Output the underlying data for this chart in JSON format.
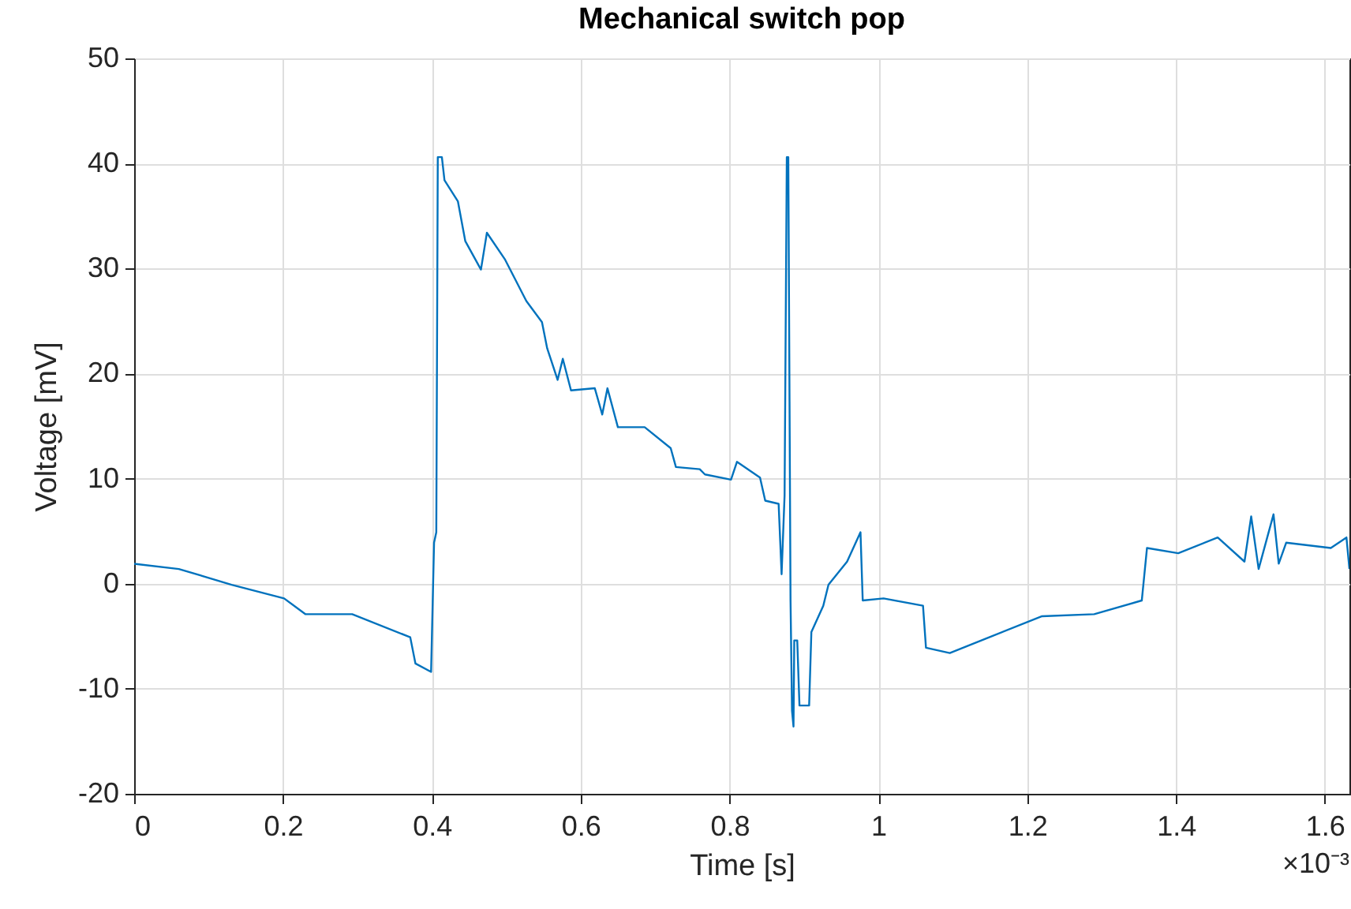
{
  "chart_data": {
    "type": "line",
    "title": "Mechanical switch pop",
    "xlabel": "Time [s]",
    "ylabel": "Voltage [mV]",
    "annotations": [
      "×10⁻³"
    ],
    "xlim": [
      0,
      1.633
    ],
    "xticks": [
      0,
      0.2,
      0.4,
      0.6,
      0.8,
      1,
      1.2,
      1.4,
      1.6
    ],
    "ylim": [
      -20,
      50
    ],
    "yticks": [
      -20,
      -10,
      0,
      10,
      20,
      30,
      40,
      50
    ],
    "grid": true,
    "line_style": "solid",
    "marker": "none",
    "series": [
      {
        "color": "#0072bd",
        "x": [
          0,
          0.06,
          0.131,
          0.2015,
          0.23,
          0.293,
          0.371,
          0.378,
          0.399,
          0.403,
          0.406,
          0.408,
          0.4135,
          0.417,
          0.435,
          0.445,
          0.466,
          0.474,
          0.498,
          0.527,
          0.548,
          0.555,
          0.569,
          0.576,
          0.587,
          0.619,
          0.629,
          0.636,
          0.65,
          0.686,
          0.721,
          0.728,
          0.76,
          0.767,
          0.802,
          0.81,
          0.841,
          0.848,
          0.866,
          0.87,
          0.874,
          0.877,
          0.879,
          0.882,
          0.884,
          0.886,
          0.887,
          0.891,
          0.894,
          0.907,
          0.91,
          0.926,
          0.933,
          0.958,
          0.976,
          0.979,
          1.007,
          1.06,
          1.064,
          1.096,
          1.149,
          1.22,
          1.29,
          1.354,
          1.361,
          1.403,
          1.456,
          1.492,
          1.501,
          1.511,
          1.531,
          1.538,
          1.548,
          1.608,
          1.629,
          1.633
        ],
        "values": [
          1.9,
          1.4,
          -0.1,
          -1.4,
          -2.9,
          -2.9,
          -5.1,
          -7.6,
          -8.4,
          3.9,
          4.9,
          40.6,
          40.6,
          38.4,
          36.4,
          32.6,
          29.9,
          33.4,
          30.9,
          26.9,
          24.9,
          22.4,
          19.4,
          21.4,
          18.4,
          18.6,
          16.1,
          18.6,
          14.9,
          14.9,
          12.9,
          11.1,
          10.9,
          10.4,
          9.9,
          11.6,
          10.1,
          7.9,
          7.6,
          0.9,
          8.4,
          40.6,
          40.6,
          -1.6,
          -12.1,
          -13.6,
          -5.4,
          -5.4,
          -11.6,
          -11.6,
          -4.6,
          -2.1,
          -0.1,
          2.1,
          4.9,
          -1.6,
          -1.4,
          -2.1,
          -6.1,
          -6.6,
          -5.1,
          -3.1,
          -2.9,
          -1.6,
          3.4,
          2.9,
          4.4,
          2.1,
          6.4,
          1.4,
          6.6,
          1.9,
          3.9,
          3.4,
          4.4,
          1.4
        ]
      }
    ]
  }
}
